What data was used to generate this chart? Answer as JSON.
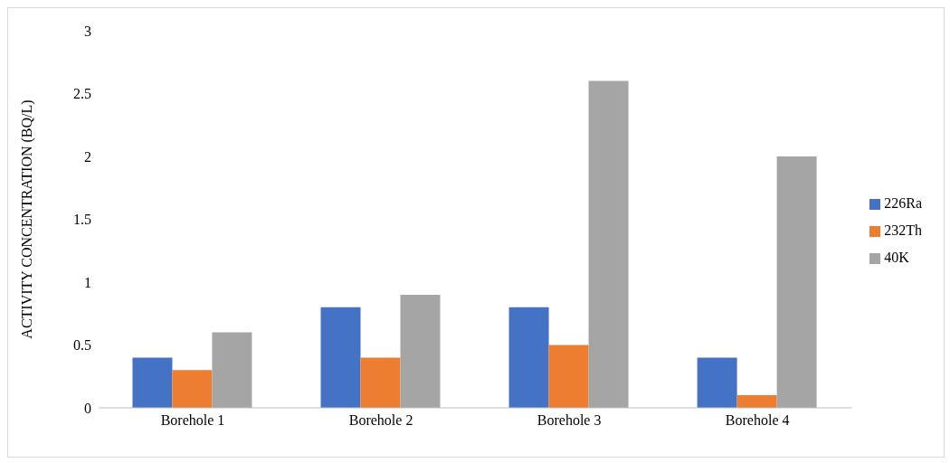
{
  "chart_data": {
    "type": "bar",
    "ylabel": "ACTIVITY CONCENTRATION (BQ/L)",
    "categories": [
      "Borehole 1",
      "Borehole 2",
      "Borehole 3",
      "Borehole 4"
    ],
    "series": [
      {
        "name": "226Ra",
        "color": "#4472c4",
        "values": [
          0.4,
          0.8,
          0.8,
          0.4
        ]
      },
      {
        "name": "232Th",
        "color": "#ed7d31",
        "values": [
          0.3,
          0.4,
          0.5,
          0.1
        ]
      },
      {
        "name": "40K",
        "color": "#a5a5a5",
        "values": [
          0.6,
          0.9,
          2.6,
          2.0
        ]
      }
    ],
    "ylim": [
      0,
      3
    ],
    "yticks": [
      0,
      0.5,
      1,
      1.5,
      2,
      2.5,
      3
    ],
    "grid": false,
    "legend": "right"
  }
}
